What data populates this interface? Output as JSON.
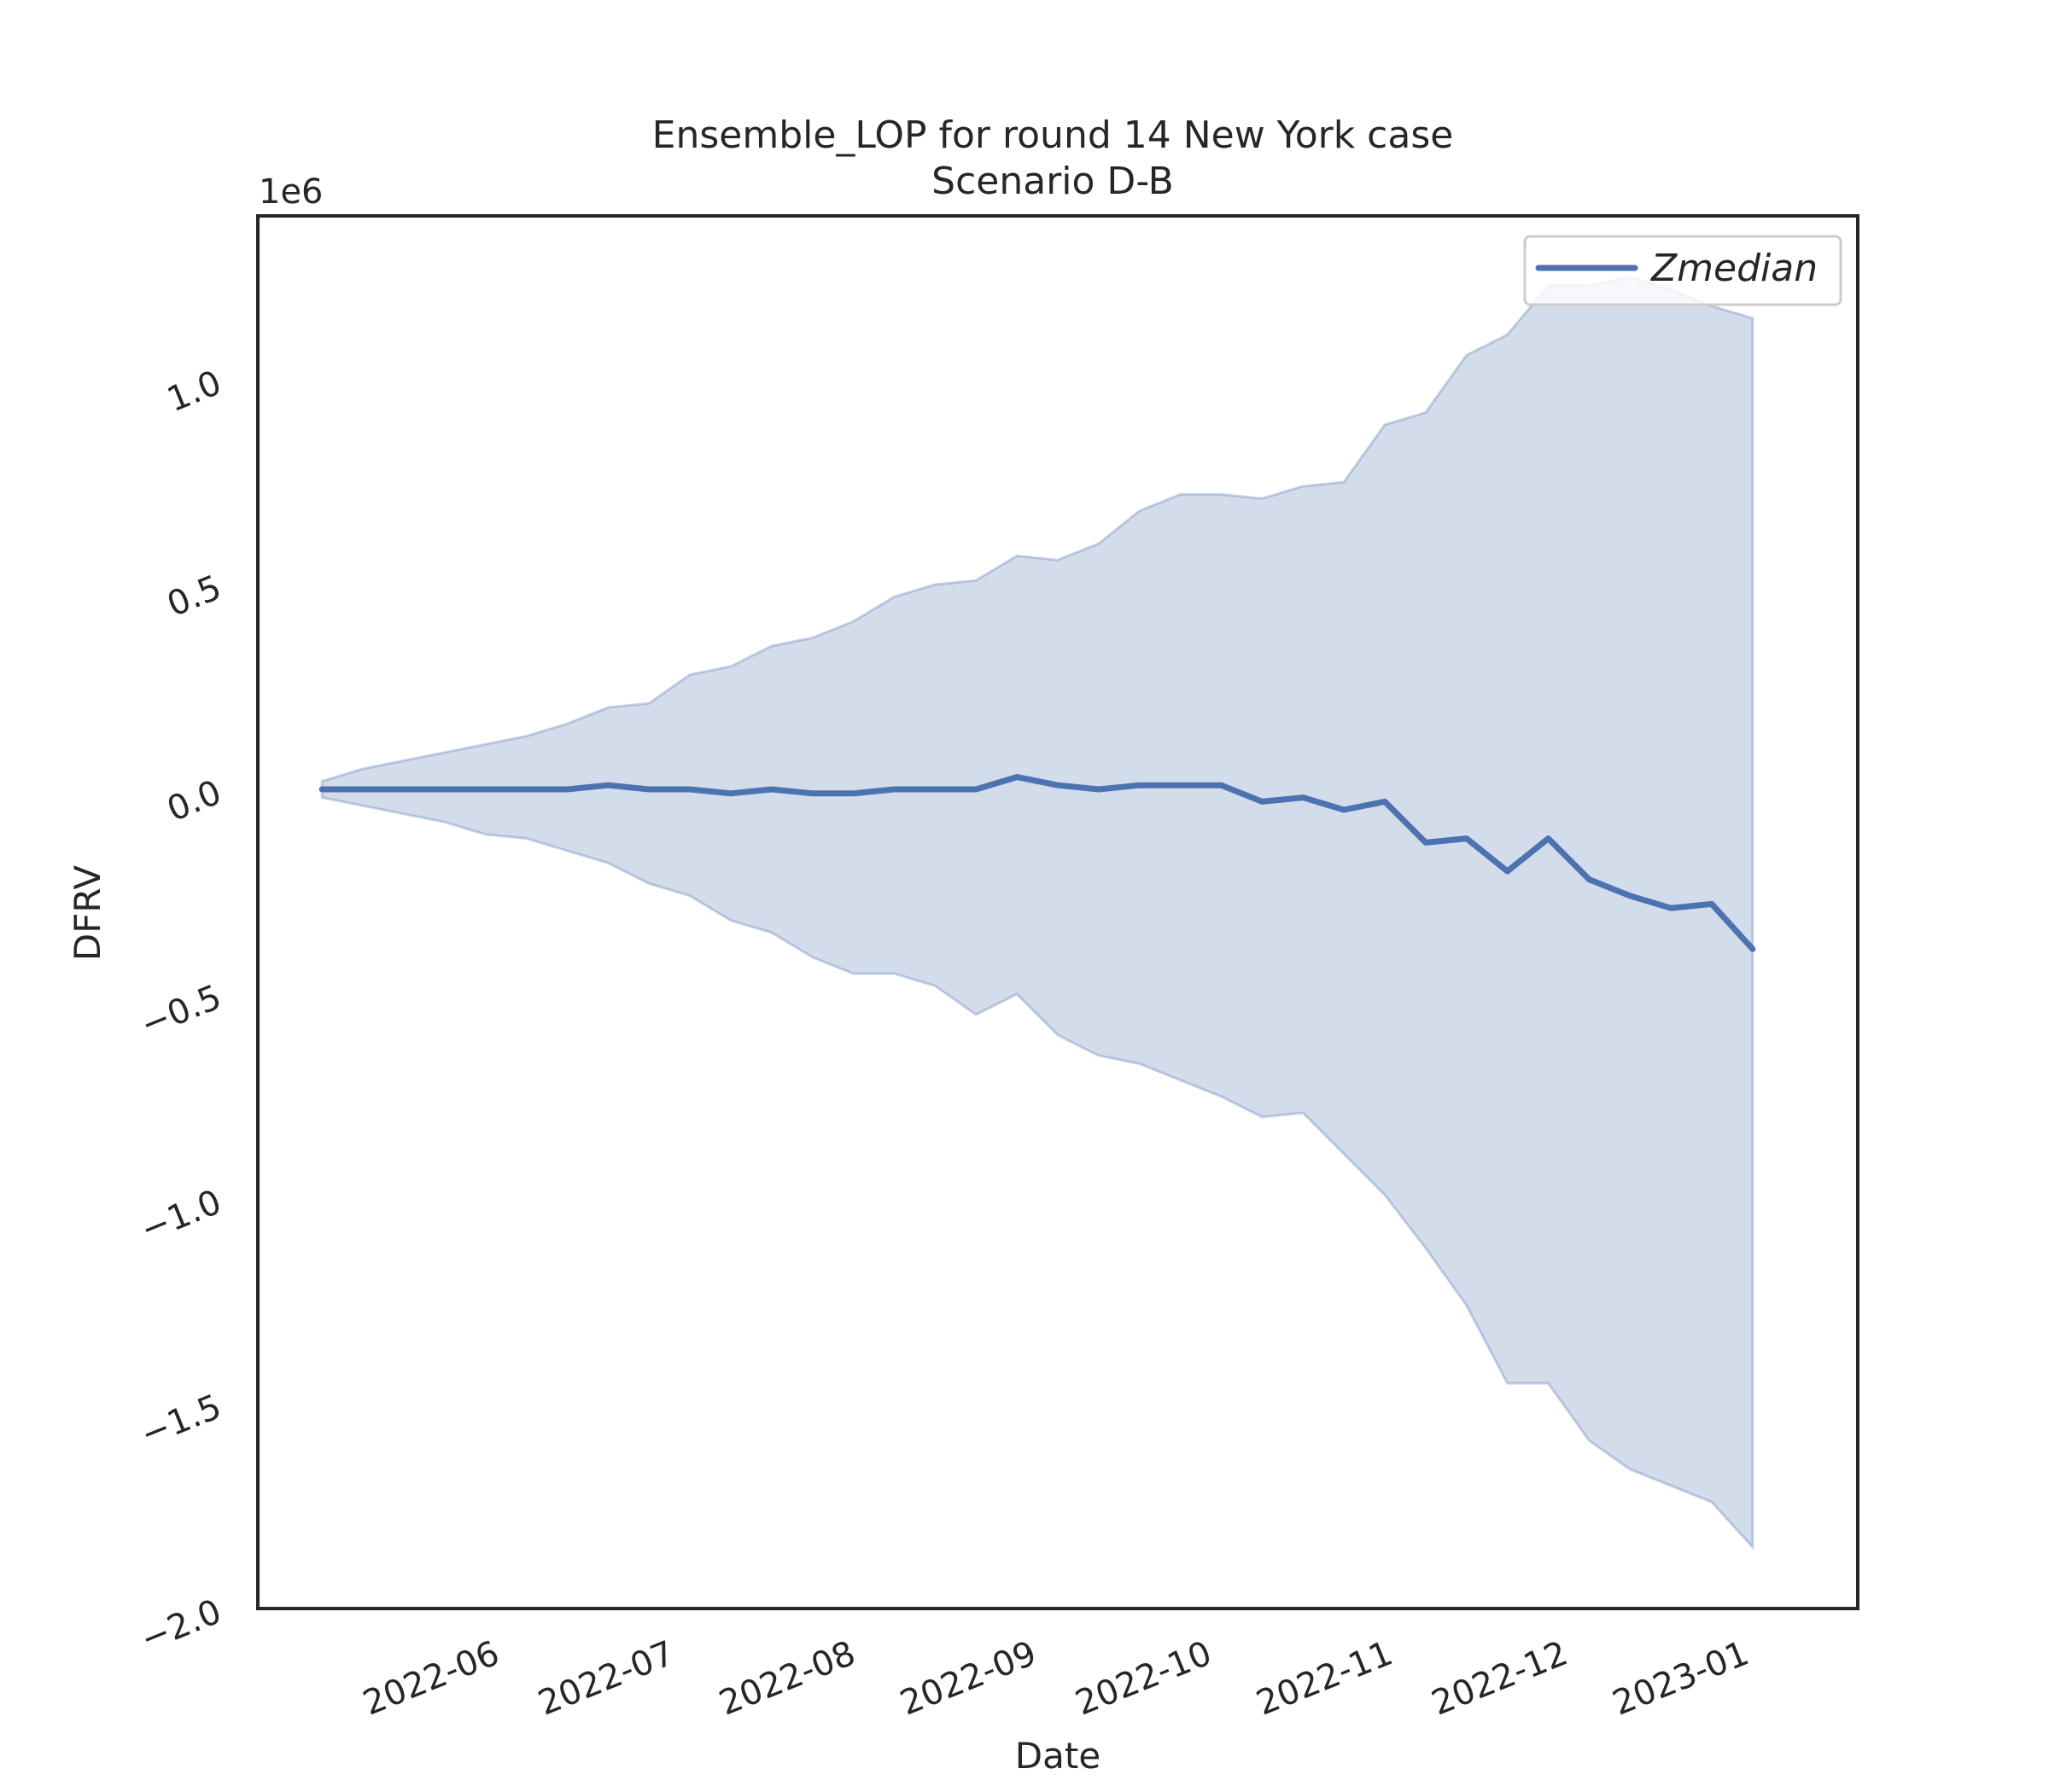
{
  "chart_data": {
    "type": "line",
    "title": "Ensemble_LOP for round 14 New York case",
    "subtitle": "Scenario D-B",
    "xlabel": "Date",
    "ylabel": "DFRV",
    "y_offset_label": "1e6",
    "ylim": [
      -2.0,
      1.4
    ],
    "xlim": [
      "2022-04-26",
      "2023-01-25"
    ],
    "grid": false,
    "legend_position": "top-right",
    "x_ticks": [
      "2022-06",
      "2022-07",
      "2022-08",
      "2022-09",
      "2022-10",
      "2022-11",
      "2022-12",
      "2023-01"
    ],
    "y_ticks": [
      -2.0,
      -1.5,
      -1.0,
      -0.5,
      0.0,
      0.5,
      1.0
    ],
    "y_tick_labels": [
      "−2.0",
      "−1.5",
      "−1.0",
      "−0.5",
      "0.0",
      "0.5",
      "1.0"
    ],
    "x": [
      "2022-05-07",
      "2022-05-14",
      "2022-05-21",
      "2022-05-28",
      "2022-06-04",
      "2022-06-11",
      "2022-06-18",
      "2022-06-25",
      "2022-07-02",
      "2022-07-09",
      "2022-07-16",
      "2022-07-23",
      "2022-07-30",
      "2022-08-06",
      "2022-08-13",
      "2022-08-20",
      "2022-08-27",
      "2022-09-03",
      "2022-09-10",
      "2022-09-17",
      "2022-09-24",
      "2022-10-01",
      "2022-10-08",
      "2022-10-15",
      "2022-10-22",
      "2022-10-29",
      "2022-11-05",
      "2022-11-12",
      "2022-11-19",
      "2022-11-26",
      "2022-12-03",
      "2022-12-10",
      "2022-12-17",
      "2022-12-24",
      "2022-12-31",
      "2023-01-07"
    ],
    "series": [
      {
        "name": "Zmedian",
        "color": "#4c72b0",
        "values": [
          0.0,
          0.0,
          0.0,
          0.0,
          0.0,
          0.0,
          0.0,
          0.01,
          0.0,
          0.0,
          -0.01,
          0.0,
          -0.01,
          -0.01,
          0.0,
          0.0,
          0.0,
          0.03,
          0.01,
          0.0,
          0.01,
          0.01,
          0.01,
          -0.03,
          -0.02,
          -0.05,
          -0.03,
          -0.13,
          -0.12,
          -0.2,
          -0.12,
          -0.22,
          -0.26,
          -0.29,
          -0.28,
          -0.39
        ]
      }
    ],
    "band": {
      "color": "#4c72b0",
      "upper": [
        0.02,
        0.05,
        0.07,
        0.09,
        0.11,
        0.13,
        0.16,
        0.2,
        0.21,
        0.28,
        0.3,
        0.35,
        0.37,
        0.41,
        0.47,
        0.5,
        0.51,
        0.57,
        0.56,
        0.6,
        0.68,
        0.72,
        0.72,
        0.71,
        0.74,
        0.75,
        0.89,
        0.92,
        1.06,
        1.11,
        1.23,
        1.23,
        1.25,
        1.22,
        1.18,
        1.15
      ],
      "lower": [
        -0.02,
        -0.04,
        -0.06,
        -0.08,
        -0.11,
        -0.12,
        -0.15,
        -0.18,
        -0.23,
        -0.26,
        -0.32,
        -0.35,
        -0.41,
        -0.45,
        -0.45,
        -0.48,
        -0.55,
        -0.5,
        -0.6,
        -0.65,
        -0.67,
        -0.71,
        -0.75,
        -0.8,
        -0.79,
        -0.89,
        -0.99,
        -1.12,
        -1.26,
        -1.45,
        -1.45,
        -1.59,
        -1.66,
        -1.7,
        -1.74,
        -1.85
      ]
    }
  }
}
